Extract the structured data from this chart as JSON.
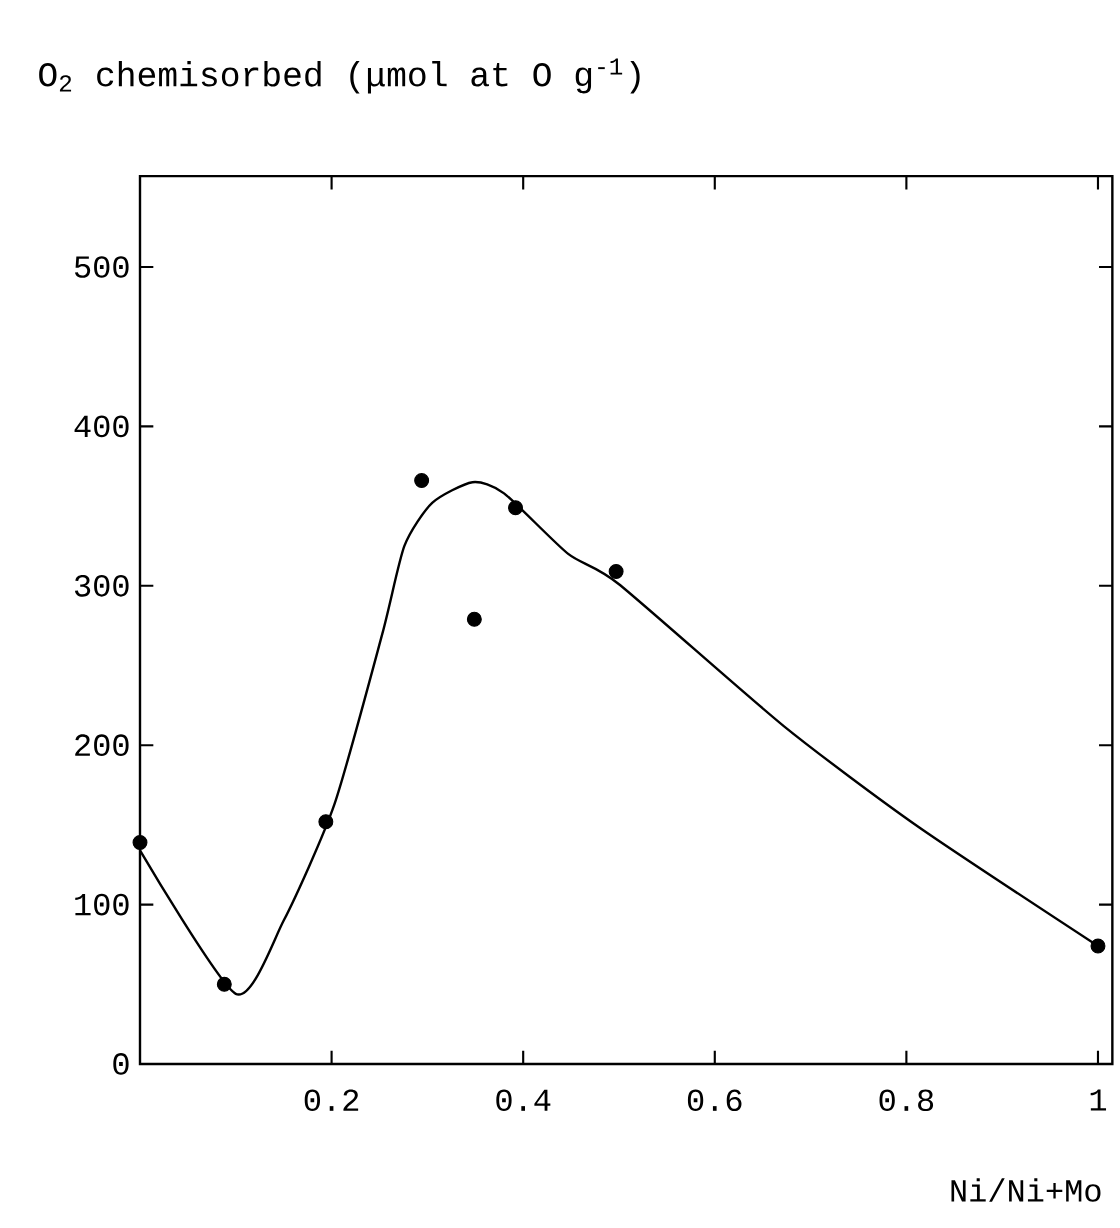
{
  "chart_data": {
    "type": "scatter",
    "title": "O$_{2}$ chemisorbed (μmol at O g$^{-1}$)",
    "xlabel": "Ni/Ni+Mo",
    "xlim": [
      0,
      1.015
    ],
    "ylim": [
      0,
      557
    ],
    "xticks": [
      {
        "value": 0.2,
        "label": "0.2"
      },
      {
        "value": 0.4,
        "label": "0.4"
      },
      {
        "value": 0.6,
        "label": "0.6"
      },
      {
        "value": 0.8,
        "label": "0.8"
      },
      {
        "value": 1,
        "label": "1"
      }
    ],
    "yticks": [
      0,
      100,
      200,
      300,
      400,
      500
    ],
    "grid": false,
    "series": [
      {
        "marker": "circle",
        "color": "#000000",
        "x": [
          0,
          0.088,
          0.194,
          0.294,
          0.349,
          0.392,
          0.497,
          1.0
        ],
        "values": [
          139,
          50,
          152,
          366,
          279,
          349,
          309,
          74
        ]
      },
      {
        "type": "line",
        "marker": "none",
        "color": "#000000",
        "x": [
          0,
          0.1,
          0.15,
          0.203,
          0.253,
          0.276,
          0.305,
          0.347,
          0.38,
          0.447,
          0.5,
          0.672,
          0.812,
          1.0
        ],
        "values": [
          134,
          44,
          90,
          163,
          270,
          325,
          352,
          365,
          358,
          320,
          301,
          212,
          149,
          74
        ]
      }
    ]
  }
}
